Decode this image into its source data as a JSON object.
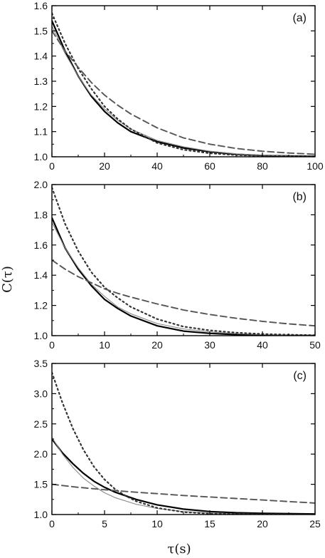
{
  "figure": {
    "ylabel": "C(τ)",
    "xlabel": "τ(s)"
  },
  "chart_data": [
    {
      "type": "line",
      "panel_label": "(a)",
      "xlim": [
        0,
        100
      ],
      "ylim": [
        1.0,
        1.6
      ],
      "xticks": [
        0,
        20,
        40,
        60,
        80,
        100
      ],
      "yticks": [
        1.0,
        1.1,
        1.2,
        1.3,
        1.4,
        1.5,
        1.6
      ],
      "xtick_labels": [
        "0",
        "20",
        "40",
        "60",
        "80",
        "100"
      ],
      "ytick_labels": [
        "1.0",
        "1.1",
        "1.2",
        "1.3",
        "1.4",
        "1.5",
        "1.6"
      ],
      "grid": false,
      "series": [
        {
          "style": "solid-thick",
          "x": [
            0,
            5,
            10,
            15,
            20,
            25,
            30,
            40,
            50,
            60,
            70,
            80,
            90,
            100
          ],
          "y": [
            1.54,
            1.42,
            1.32,
            1.24,
            1.18,
            1.135,
            1.1,
            1.06,
            1.035,
            1.02,
            1.01,
            1.005,
            1.003,
            1.002
          ]
        },
        {
          "style": "solid-thin",
          "x": [
            0,
            5,
            10,
            15,
            20,
            25,
            30,
            40,
            50,
            60,
            70,
            80,
            90,
            100
          ],
          "y": [
            1.52,
            1.41,
            1.32,
            1.245,
            1.19,
            1.145,
            1.11,
            1.065,
            1.04,
            1.022,
            1.012,
            1.006,
            1.003,
            1.002
          ]
        },
        {
          "style": "dotted",
          "x": [
            0,
            5,
            10,
            15,
            20,
            25,
            30,
            40,
            50,
            60,
            70,
            80,
            90,
            100
          ],
          "y": [
            1.57,
            1.45,
            1.35,
            1.27,
            1.2,
            1.15,
            1.11,
            1.055,
            1.028,
            1.014,
            1.007,
            1.003,
            1.002,
            1.001
          ]
        },
        {
          "style": "dashed",
          "x": [
            0,
            5,
            10,
            15,
            20,
            25,
            30,
            40,
            50,
            60,
            70,
            80,
            90,
            100
          ],
          "y": [
            1.5,
            1.42,
            1.355,
            1.295,
            1.245,
            1.205,
            1.17,
            1.115,
            1.075,
            1.05,
            1.033,
            1.022,
            1.015,
            1.01
          ]
        }
      ]
    },
    {
      "type": "line",
      "panel_label": "(b)",
      "xlim": [
        0,
        50
      ],
      "ylim": [
        1.0,
        2.0
      ],
      "xticks": [
        0,
        10,
        20,
        30,
        40,
        50
      ],
      "yticks": [
        1.0,
        1.2,
        1.4,
        1.6,
        1.8,
        2.0
      ],
      "xtick_labels": [
        "0",
        "10",
        "20",
        "30",
        "40",
        "50"
      ],
      "ytick_labels": [
        "1.0",
        "1.2",
        "1.4",
        "1.6",
        "1.8",
        "2.0"
      ],
      "grid": false,
      "series": [
        {
          "style": "solid-thick",
          "x": [
            0,
            2.5,
            5,
            7.5,
            10,
            12.5,
            15,
            20,
            25,
            30,
            35,
            40,
            45,
            50
          ],
          "y": [
            1.78,
            1.58,
            1.44,
            1.33,
            1.24,
            1.18,
            1.13,
            1.065,
            1.03,
            1.015,
            1.007,
            1.003,
            1.002,
            1.001
          ]
        },
        {
          "style": "solid-thin",
          "x": [
            0,
            2.5,
            5,
            7.5,
            10,
            12.5,
            15,
            20,
            25,
            30,
            35,
            40,
            45,
            50
          ],
          "y": [
            1.75,
            1.58,
            1.45,
            1.34,
            1.26,
            1.19,
            1.145,
            1.08,
            1.045,
            1.025,
            1.013,
            1.007,
            1.004,
            1.002
          ]
        },
        {
          "style": "dotted",
          "x": [
            0,
            2.5,
            5,
            7.5,
            10,
            12.5,
            15,
            20,
            25,
            30,
            35,
            40,
            45,
            50
          ],
          "y": [
            1.98,
            1.74,
            1.56,
            1.42,
            1.32,
            1.25,
            1.19,
            1.11,
            1.06,
            1.035,
            1.02,
            1.011,
            1.006,
            1.003
          ]
        },
        {
          "style": "dashed",
          "x": [
            0,
            2.5,
            5,
            7.5,
            10,
            12.5,
            15,
            20,
            25,
            30,
            35,
            40,
            45,
            50
          ],
          "y": [
            1.5,
            1.44,
            1.39,
            1.35,
            1.31,
            1.28,
            1.255,
            1.21,
            1.17,
            1.14,
            1.115,
            1.095,
            1.078,
            1.065
          ]
        }
      ]
    },
    {
      "type": "line",
      "panel_label": "(c)",
      "xlim": [
        0,
        25
      ],
      "ylim": [
        1.0,
        3.5
      ],
      "xticks": [
        0,
        5,
        10,
        15,
        20,
        25
      ],
      "yticks": [
        1.0,
        1.5,
        2.0,
        2.5,
        3.0,
        3.5
      ],
      "xtick_labels": [
        "0",
        "5",
        "10",
        "15",
        "20",
        "25"
      ],
      "ytick_labels": [
        "1.0",
        "1.5",
        "2.0",
        "2.5",
        "3.0",
        "3.5"
      ],
      "grid": false,
      "series": [
        {
          "style": "solid-thick",
          "x": [
            0,
            1,
            2,
            3,
            4,
            5,
            6,
            8,
            10,
            12.5,
            15,
            17.5,
            20,
            25
          ],
          "y": [
            2.25,
            2.02,
            1.84,
            1.68,
            1.55,
            1.45,
            1.37,
            1.25,
            1.16,
            1.09,
            1.05,
            1.03,
            1.02,
            1.01
          ]
        },
        {
          "style": "solid-thin",
          "x": [
            0,
            1,
            2,
            3,
            4,
            5,
            6,
            8,
            10,
            12.5,
            15,
            17.5,
            20,
            25
          ],
          "y": [
            2.28,
            2.0,
            1.78,
            1.6,
            1.47,
            1.36,
            1.28,
            1.17,
            1.1,
            1.05,
            1.025,
            1.012,
            1.006,
            1.002
          ]
        },
        {
          "style": "dotted",
          "x": [
            0,
            1,
            2,
            3,
            4,
            5,
            6,
            7,
            8,
            10,
            12.5,
            15,
            20,
            25
          ],
          "y": [
            3.35,
            2.85,
            2.42,
            2.07,
            1.79,
            1.58,
            1.42,
            1.31,
            1.22,
            1.11,
            1.04,
            1.015,
            1.003,
            1.001
          ]
        },
        {
          "style": "dashed",
          "x": [
            0,
            2.5,
            5,
            7.5,
            10,
            12.5,
            15,
            17.5,
            20,
            22.5,
            25
          ],
          "y": [
            1.5,
            1.45,
            1.41,
            1.375,
            1.345,
            1.315,
            1.29,
            1.265,
            1.24,
            1.215,
            1.19
          ]
        }
      ]
    }
  ],
  "style_colors": {
    "solid-thick": "#000000",
    "solid-thin": "#8a8a8a",
    "dotted": "#333333",
    "dashed": "#555555"
  }
}
